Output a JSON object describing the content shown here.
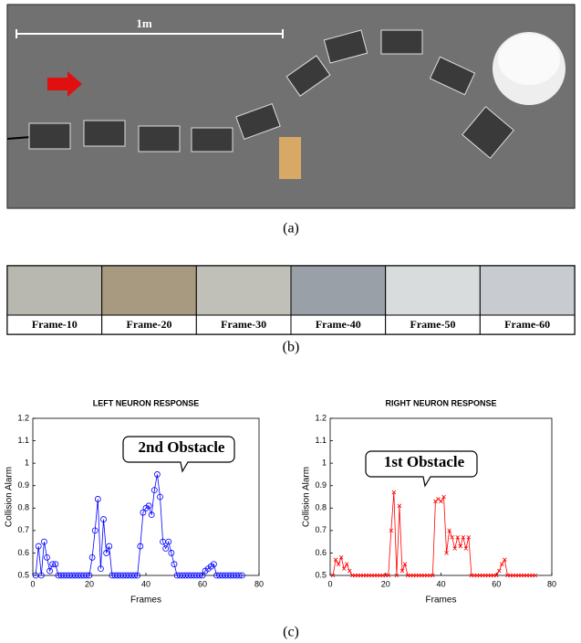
{
  "scale_label": "1m",
  "caption_a": "(a)",
  "frames": [
    "Frame-10",
    "Frame-20",
    "Frame-30",
    "Frame-40",
    "Frame-50",
    "Frame-60"
  ],
  "caption_b": "(b)",
  "caption_c": "(c)",
  "chart_data": [
    {
      "type": "line",
      "title": "LEFT NEURON RESPONSE",
      "xlabel": "Frames",
      "ylabel": "Collision Alarm",
      "annotation": "2nd Obstacle",
      "marker": "o",
      "xlim": [
        0,
        80
      ],
      "ylim": [
        0.5,
        1.2
      ],
      "xticks": [
        0,
        20,
        40,
        60,
        80
      ],
      "yticks": [
        0.5,
        0.6,
        0.7,
        0.8,
        0.9,
        1,
        1.1,
        1.2
      ],
      "x": [
        1,
        2,
        3,
        4,
        5,
        6,
        7,
        8,
        9,
        10,
        11,
        12,
        13,
        14,
        15,
        16,
        17,
        18,
        19,
        20,
        21,
        22,
        23,
        24,
        25,
        26,
        27,
        28,
        29,
        30,
        31,
        32,
        33,
        34,
        35,
        36,
        37,
        38,
        39,
        40,
        41,
        42,
        43,
        44,
        45,
        46,
        47,
        48,
        49,
        50,
        51,
        52,
        53,
        54,
        55,
        56,
        57,
        58,
        59,
        60,
        61,
        62,
        63,
        64,
        65,
        66,
        67,
        68,
        69,
        70,
        71,
        72,
        73,
        74
      ],
      "series": [
        {
          "name": "Left",
          "color": "#0000ff",
          "values": [
            0.5,
            0.63,
            0.5,
            0.65,
            0.58,
            0.52,
            0.55,
            0.55,
            0.5,
            0.5,
            0.5,
            0.5,
            0.5,
            0.5,
            0.5,
            0.5,
            0.5,
            0.5,
            0.5,
            0.5,
            0.58,
            0.7,
            0.84,
            0.53,
            0.75,
            0.6,
            0.63,
            0.5,
            0.5,
            0.5,
            0.5,
            0.5,
            0.5,
            0.5,
            0.5,
            0.5,
            0.5,
            0.63,
            0.78,
            0.8,
            0.81,
            0.77,
            0.88,
            0.95,
            0.85,
            0.65,
            0.62,
            0.65,
            0.6,
            0.55,
            0.5,
            0.5,
            0.5,
            0.5,
            0.5,
            0.5,
            0.5,
            0.5,
            0.5,
            0.5,
            0.52,
            0.53,
            0.54,
            0.55,
            0.5,
            0.5,
            0.5,
            0.5,
            0.5,
            0.5,
            0.5,
            0.5,
            0.5,
            0.5
          ]
        }
      ]
    },
    {
      "type": "line",
      "title": "RIGHT NEURON RESPONSE",
      "xlabel": "Frames",
      "ylabel": "Collision Alarm",
      "annotation": "1st Obstacle",
      "marker": "x",
      "xlim": [
        0,
        80
      ],
      "ylim": [
        0.5,
        1.2
      ],
      "xticks": [
        0,
        20,
        40,
        60,
        80
      ],
      "yticks": [
        0.5,
        0.6,
        0.7,
        0.8,
        0.9,
        1,
        1.1,
        1.2
      ],
      "x": [
        1,
        2,
        3,
        4,
        5,
        6,
        7,
        8,
        9,
        10,
        11,
        12,
        13,
        14,
        15,
        16,
        17,
        18,
        19,
        20,
        21,
        22,
        23,
        24,
        25,
        26,
        27,
        28,
        29,
        30,
        31,
        32,
        33,
        34,
        35,
        36,
        37,
        38,
        39,
        40,
        41,
        42,
        43,
        44,
        45,
        46,
        47,
        48,
        49,
        50,
        51,
        52,
        53,
        54,
        55,
        56,
        57,
        58,
        59,
        60,
        61,
        62,
        63,
        64,
        65,
        66,
        67,
        68,
        69,
        70,
        71,
        72,
        73,
        74
      ],
      "series": [
        {
          "name": "Right",
          "color": "#ff0000",
          "values": [
            0.5,
            0.57,
            0.55,
            0.58,
            0.53,
            0.55,
            0.52,
            0.5,
            0.5,
            0.5,
            0.5,
            0.5,
            0.5,
            0.5,
            0.5,
            0.5,
            0.5,
            0.5,
            0.5,
            0.5,
            0.5,
            0.7,
            0.87,
            0.5,
            0.81,
            0.52,
            0.55,
            0.5,
            0.5,
            0.5,
            0.5,
            0.5,
            0.5,
            0.5,
            0.5,
            0.5,
            0.5,
            0.83,
            0.84,
            0.83,
            0.85,
            0.6,
            0.7,
            0.67,
            0.62,
            0.67,
            0.63,
            0.67,
            0.62,
            0.67,
            0.5,
            0.5,
            0.5,
            0.5,
            0.5,
            0.5,
            0.5,
            0.5,
            0.5,
            0.5,
            0.52,
            0.55,
            0.57,
            0.5,
            0.5,
            0.5,
            0.5,
            0.5,
            0.5,
            0.5,
            0.5,
            0.5,
            0.5,
            0.5
          ]
        }
      ]
    }
  ]
}
